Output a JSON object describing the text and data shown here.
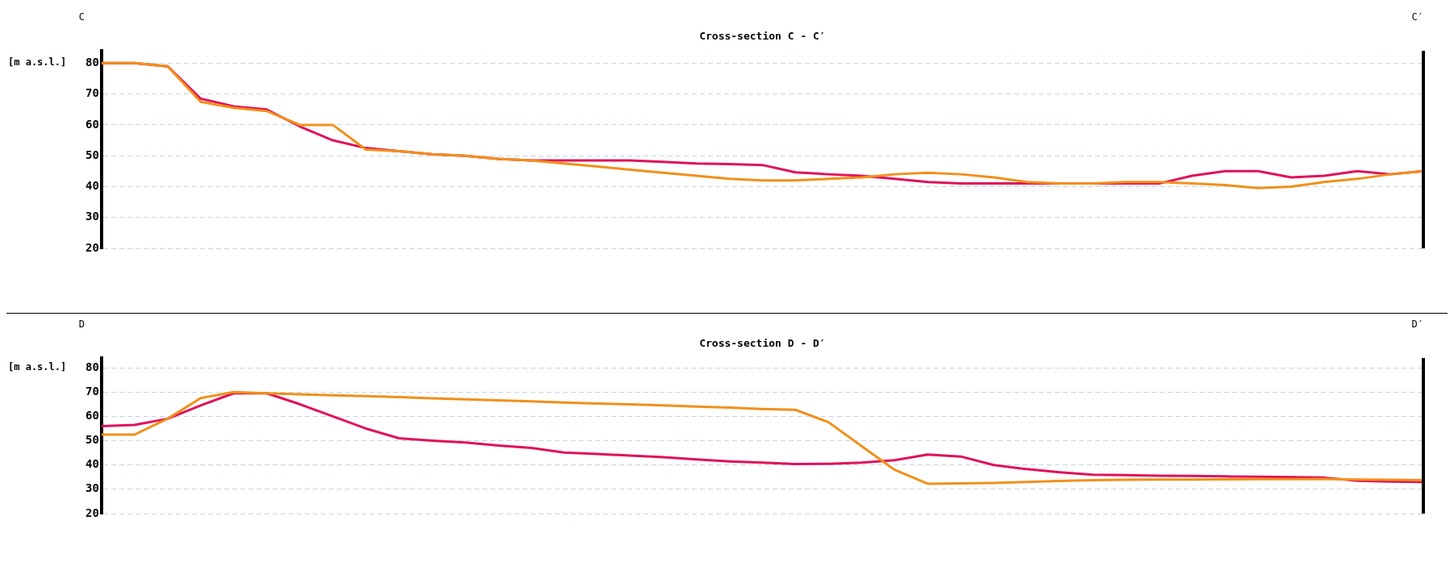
{
  "chart_data": [
    {
      "type": "line",
      "title": "Cross-section C - C′",
      "ylabel": "[m a.s.l.]",
      "annotations": [
        "C",
        "C′"
      ],
      "categories": [
        null,
        null,
        null,
        null,
        null,
        null,
        null,
        null,
        null,
        null,
        null,
        null,
        null,
        null,
        null,
        null,
        null,
        null,
        null,
        null,
        null,
        null,
        null,
        null,
        null,
        null,
        null,
        null,
        null,
        null,
        null,
        null,
        null,
        null,
        null,
        null,
        null,
        null,
        null,
        null,
        null
      ],
      "series": [
        {
          "color": "#f0901a",
          "values": [
            80,
            80,
            79,
            67.5,
            65.5,
            64.5,
            60,
            60,
            52,
            51.5,
            50.5,
            50,
            49,
            48.5,
            47.5,
            46.5,
            45.5,
            44.5,
            43.5,
            42.5,
            42,
            42,
            42.5,
            43,
            44,
            44.5,
            44,
            43,
            41.5,
            41,
            41,
            41.5,
            41.5,
            41,
            40.5,
            39.5,
            40,
            41.5,
            42.5,
            44,
            45
          ]
        },
        {
          "color": "#e0105a",
          "values": [
            80,
            80,
            79,
            68.5,
            66,
            65,
            59.5,
            55,
            52.5,
            51.5,
            50.5,
            50,
            49,
            48.5,
            48.5,
            48.5,
            48.5,
            48,
            47.5,
            47.3,
            47,
            44.6,
            44,
            43.5,
            42.5,
            41.5,
            41,
            41,
            41,
            41,
            41,
            41,
            41,
            43.5,
            45,
            45,
            43,
            43.5,
            45,
            44,
            45
          ]
        }
      ],
      "ylim": [
        20,
        84
      ],
      "yticks": [
        20,
        30,
        40,
        50,
        60,
        70,
        80
      ],
      "grid": "y",
      "legend": false,
      "tick_labels": "y",
      "marker": "none",
      "line_style": "solid"
    },
    {
      "type": "line",
      "title": "Cross-section D - D′",
      "ylabel": "[m a.s.l.]",
      "annotations": [
        "D",
        "D′"
      ],
      "categories": [
        null,
        null,
        null,
        null,
        null,
        null,
        null,
        null,
        null,
        null,
        null,
        null,
        null,
        null,
        null,
        null,
        null,
        null,
        null,
        null,
        null,
        null,
        null,
        null,
        null,
        null,
        null,
        null,
        null,
        null,
        null,
        null,
        null,
        null,
        null,
        null,
        null,
        null,
        null,
        null,
        null
      ],
      "series": [
        {
          "color": "#f0901a",
          "values": [
            52.5,
            52.5,
            59,
            67.5,
            70,
            69.5,
            69.1,
            68.7,
            68.3,
            67.9,
            67.4,
            67,
            66.6,
            66.2,
            65.7,
            65.3,
            64.9,
            64.5,
            64,
            63.6,
            63,
            62.7,
            57.6,
            47.8,
            38,
            32.3,
            32.4,
            32.6,
            33,
            33.4,
            33.8,
            33.9,
            34,
            34,
            34.1,
            34.2,
            34.2,
            34.3,
            34,
            33.9,
            33.8
          ]
        },
        {
          "color": "#e0105a",
          "values": [
            56,
            56.5,
            59,
            64.5,
            69.5,
            69.5,
            65,
            60,
            55,
            51,
            50,
            49.3,
            48,
            47,
            45.1,
            44.5,
            43.9,
            43.2,
            42.3,
            41.5,
            41,
            40.4,
            40.5,
            41,
            42,
            44.3,
            43.5,
            40,
            38.3,
            37,
            36,
            35.8,
            35.6,
            35.5,
            35.3,
            35.2,
            35,
            34.8,
            33.5,
            33.2,
            33
          ]
        }
      ],
      "ylim": [
        20,
        84
      ],
      "yticks": [
        20,
        30,
        40,
        50,
        60,
        70,
        80
      ],
      "grid": "y",
      "legend": false,
      "tick_labels": "y",
      "marker": "none",
      "line_style": "solid"
    }
  ]
}
